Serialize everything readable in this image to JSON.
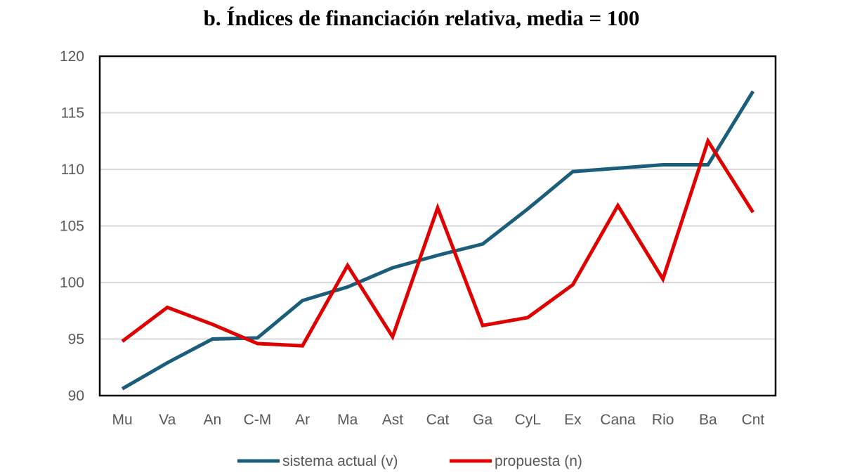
{
  "chart_data": {
    "type": "line",
    "title": "b. Índices de financiación relativa, media = 100",
    "xlabel": "",
    "ylabel": "",
    "categories": [
      "Mu",
      "Va",
      "An",
      "C-M",
      "Ar",
      "Ma",
      "Ast",
      "Cat",
      "Ga",
      "CyL",
      "Ex",
      "Cana",
      "Rio",
      "Ba",
      "Cnt"
    ],
    "ylim": [
      90,
      120
    ],
    "yticks": [
      90,
      95,
      100,
      105,
      110,
      115,
      120
    ],
    "grid": true,
    "legend_position": "bottom",
    "series": [
      {
        "name": "sistema actual (v)",
        "color": "#1b5e7b",
        "values": [
          90.6,
          92.9,
          95.0,
          95.1,
          98.4,
          99.6,
          101.3,
          102.4,
          103.4,
          106.5,
          109.8,
          110.1,
          110.4,
          110.4,
          116.9
        ]
      },
      {
        "name": "propuesta (n)",
        "color": "#e00000",
        "values": [
          94.8,
          97.8,
          96.3,
          94.6,
          94.4,
          101.5,
          95.2,
          106.6,
          96.2,
          96.9,
          99.8,
          106.8,
          100.3,
          112.5,
          106.2
        ]
      }
    ]
  }
}
